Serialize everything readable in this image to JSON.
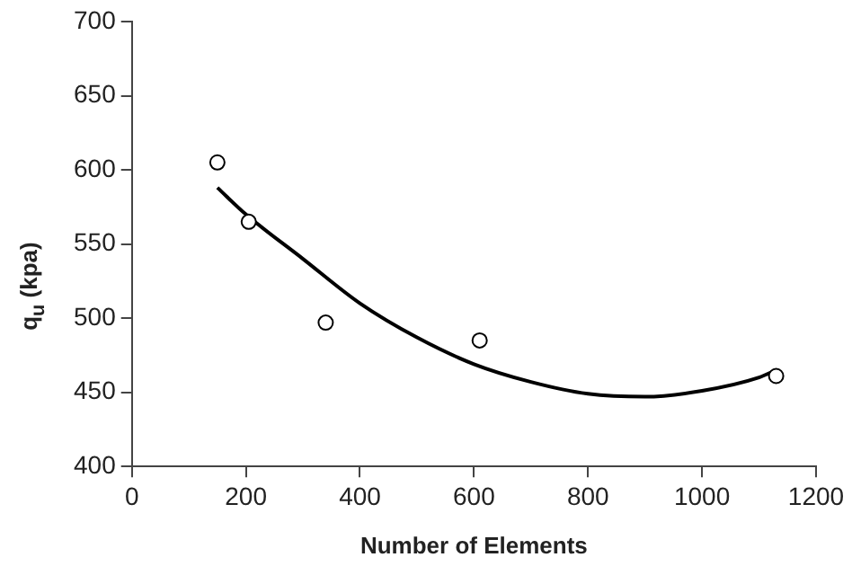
{
  "chart_data": {
    "type": "scatter",
    "xlabel": "Number of Elements",
    "ylabel": "q$_{u}$ (kpa)",
    "xlim": [
      0,
      1200
    ],
    "xticks": [
      0,
      200,
      400,
      600,
      800,
      1000,
      1200
    ],
    "ylim": [
      400,
      700
    ],
    "yticks": [
      400,
      450,
      500,
      550,
      600,
      650,
      700
    ],
    "grid": false,
    "legend": false,
    "marker": "circle",
    "series": [
      {
        "color": "#000000",
        "x": [
          150,
          205,
          340,
          610,
          1130
        ],
        "values": [
          605,
          565,
          497,
          485,
          461
        ]
      },
      {
        "type": "line",
        "color": "#000000",
        "marker": "none",
        "line_style": "solid",
        "x": [
          150,
          200,
          300,
          400,
          500,
          600,
          700,
          800,
          900,
          1000,
          1100,
          1130
        ],
        "values": [
          588,
          570,
          540,
          510,
          487,
          469,
          457,
          449,
          447,
          451,
          460,
          465
        ]
      }
    ]
  }
}
